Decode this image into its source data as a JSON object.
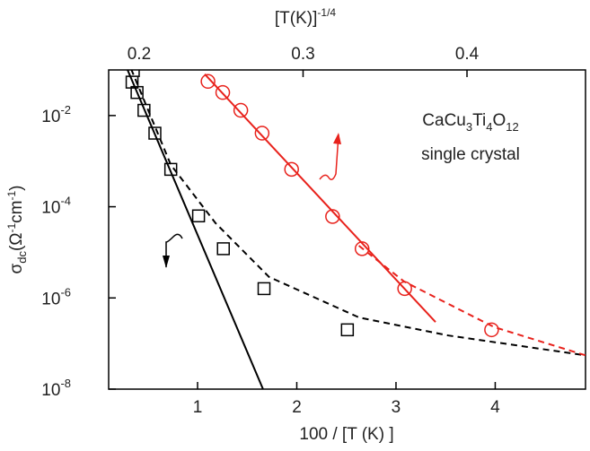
{
  "chart_data": {
    "type": "scatter",
    "x_label": "100 / [T (K) ]",
    "x2_label": [
      "[T(K)]",
      "-1/4"
    ],
    "y_label": [
      "σ",
      "dc",
      "(Ω",
      "-1",
      "cm",
      "-1",
      ")"
    ],
    "annotations": {
      "formula": [
        "CaCu",
        "3",
        "Ti",
        "4",
        "O",
        "12"
      ],
      "note": "single crystal"
    },
    "xlim": [
      0.104,
      4.91
    ],
    "xticks": [
      1,
      2,
      3,
      4
    ],
    "x2lim": [
      0.1814,
      0.4723
    ],
    "x2ticks": [
      0.2,
      0.3,
      0.4
    ],
    "ylog": true,
    "ylim": [
      1e-08,
      0.1
    ],
    "yticks": [
      {
        "value": 1e-08,
        "label": "10",
        "exponent": "-8"
      },
      {
        "value": 1e-06,
        "label": "10",
        "exponent": "-6"
      },
      {
        "value": 0.0001,
        "label": "10",
        "exponent": "-4"
      },
      {
        "value": 0.01,
        "label": "10",
        "exponent": "-2"
      }
    ],
    "series": [
      {
        "color": "#000000",
        "style": "markers",
        "marker": "square",
        "xaxis": "x",
        "x": [
          0.34,
          0.39,
          0.46,
          0.57,
          0.73,
          1.01,
          1.26,
          1.67,
          2.51
        ],
        "values": [
          0.054,
          0.032,
          0.013,
          0.0041,
          0.00066,
          6.3e-05,
          1.2e-05,
          1.6e-06,
          2e-07
        ]
      },
      {
        "color": "#000000",
        "style": "solid",
        "xaxis": "x",
        "x": [
          0.29,
          1.66
        ],
        "values": [
          0.105,
          1e-08
        ]
      },
      {
        "color": "#000000",
        "style": "dashed",
        "xaxis": "x",
        "x": [
          0.33,
          0.73,
          1.18,
          1.72,
          2.63,
          3.53,
          4.91
        ],
        "values": [
          0.105,
          0.00083,
          4.4e-05,
          2.9e-06,
          3.7e-07,
          1.5e-07,
          5.5e-08
        ]
      },
      {
        "color": "#e8221c",
        "style": "markers",
        "marker": "circle",
        "xaxis": "x2",
        "x": [
          0.242,
          0.251,
          0.262,
          0.275,
          0.293,
          0.318,
          0.336,
          0.362,
          0.415
        ],
        "values": [
          0.056,
          0.032,
          0.013,
          0.0041,
          0.00066,
          6.1e-05,
          1.2e-05,
          1.6e-06,
          2e-07
        ]
      },
      {
        "color": "#e8221c",
        "style": "solid",
        "xaxis": "x2",
        "x": [
          0.24,
          0.3808
        ],
        "values": [
          0.081,
          2.95e-07
        ]
      },
      {
        "color": "#e8221c",
        "style": "dashed",
        "xaxis": "x2",
        "x": [
          0.334,
          0.3616,
          0.4164,
          0.4723
        ],
        "values": [
          1.4e-05,
          2.3e-06,
          2.3e-07,
          5.5e-08
        ]
      }
    ]
  }
}
